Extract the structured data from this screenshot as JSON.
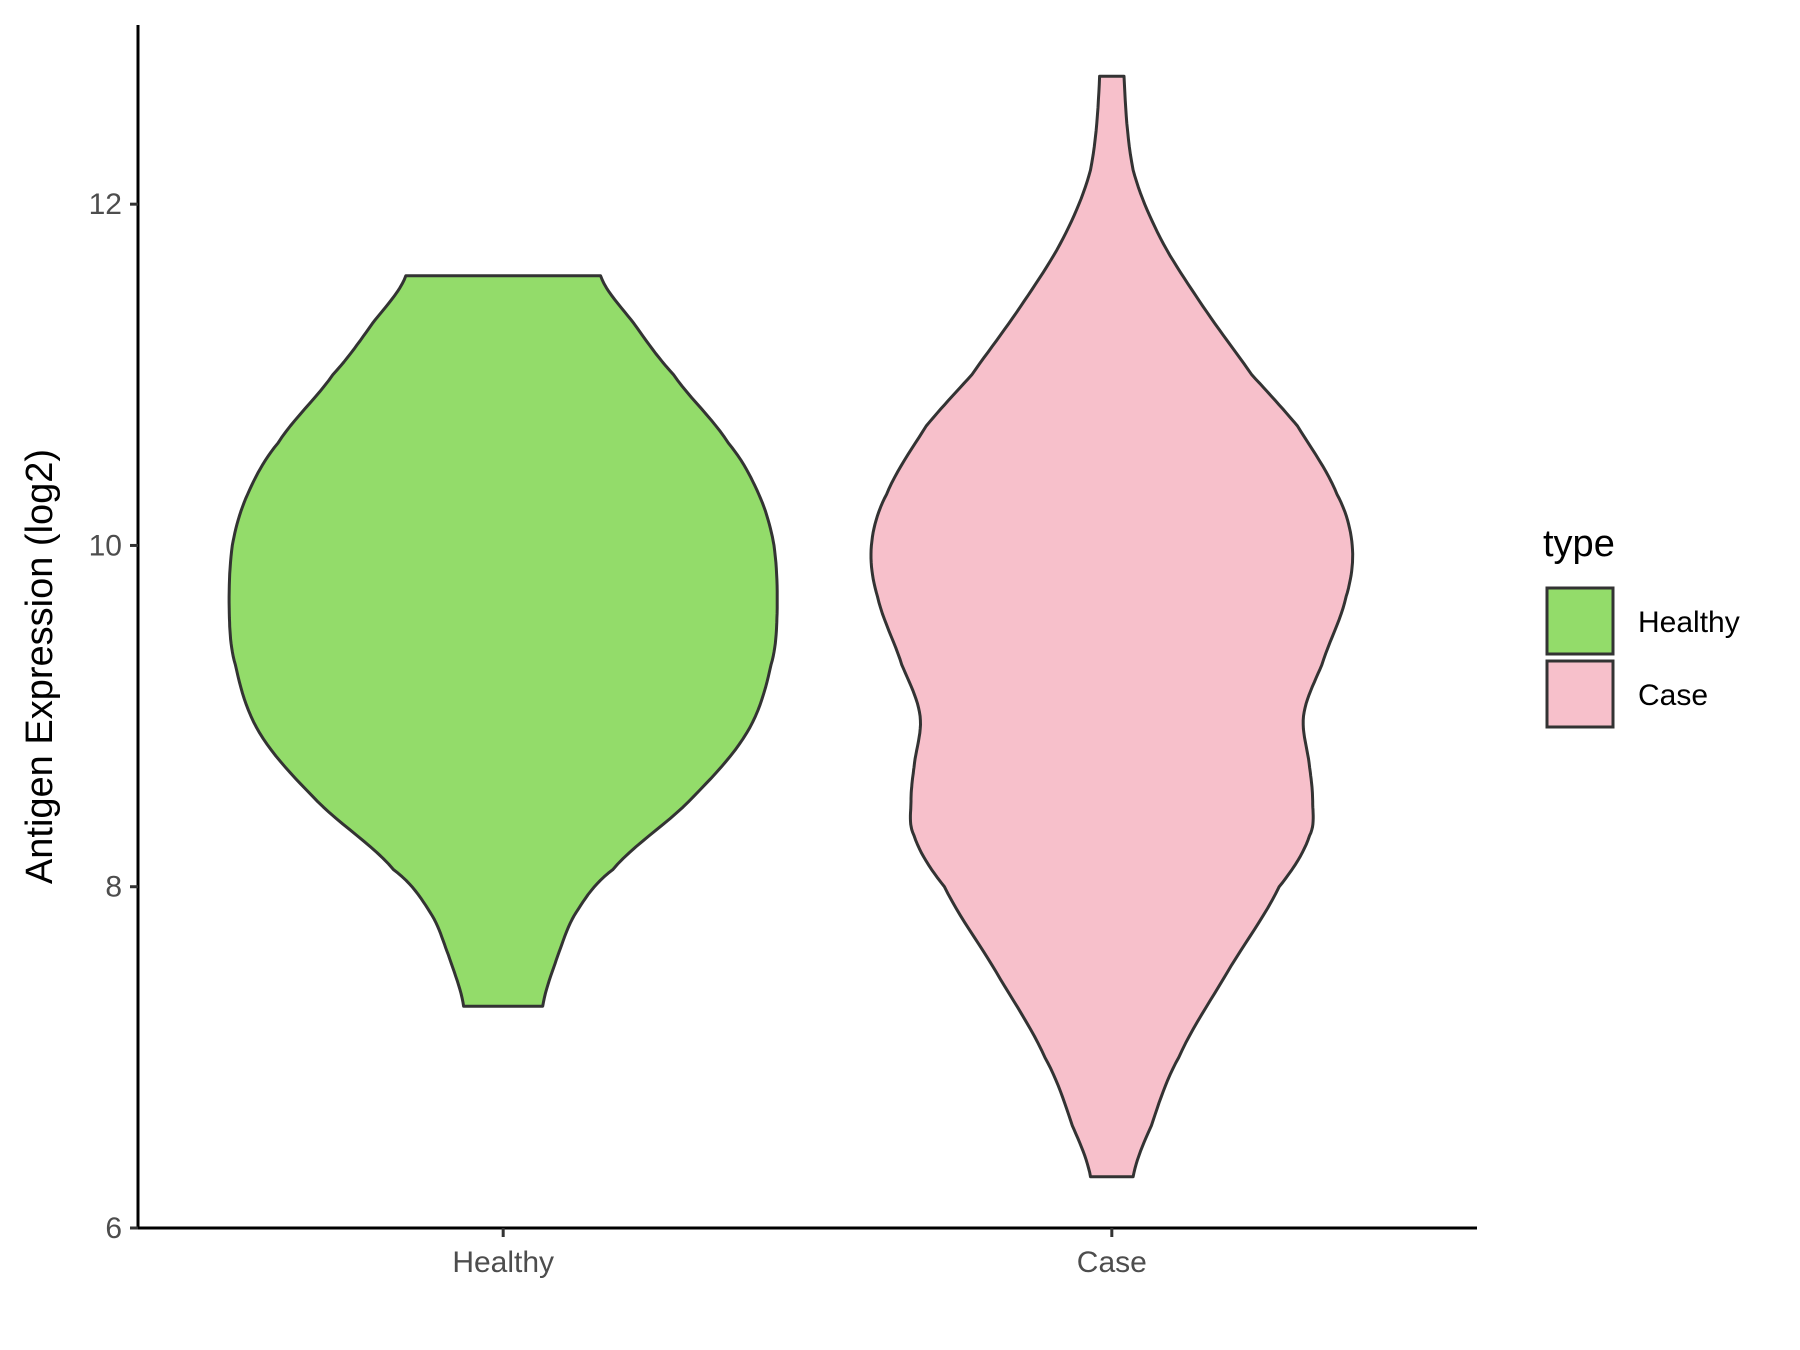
{
  "chart_data": {
    "type": "violin",
    "title": "",
    "xlabel": "",
    "ylabel": "Antigen Expression (log2)",
    "ylim": [
      6,
      13.05
    ],
    "yticks": [
      6,
      8,
      10,
      12
    ],
    "ytick_labels": [
      "6",
      "8",
      "10",
      "12"
    ],
    "categories": [
      "Healthy",
      "Case"
    ],
    "grid": false,
    "legend": {
      "title": "type",
      "position": "right",
      "entries": [
        "Healthy",
        "Case"
      ]
    },
    "series": [
      {
        "name": "Healthy",
        "color": "#93DC6A",
        "min": 7.3,
        "max": 11.58,
        "max_half_width": 0.9,
        "profile": [
          [
            7.3,
            0.13
          ],
          [
            7.6,
            0.18
          ],
          [
            7.85,
            0.24
          ],
          [
            8.1,
            0.36
          ],
          [
            8.5,
            0.61
          ],
          [
            8.9,
            0.8
          ],
          [
            9.3,
            0.88
          ],
          [
            9.6,
            0.9
          ],
          [
            10.0,
            0.89
          ],
          [
            10.3,
            0.84
          ],
          [
            10.6,
            0.74
          ],
          [
            11.0,
            0.56
          ],
          [
            11.3,
            0.43
          ],
          [
            11.58,
            0.32
          ]
        ]
      },
      {
        "name": "Case",
        "color": "#F7C0CB",
        "min": 6.3,
        "max": 12.75,
        "max_half_width": 0.9,
        "profile": [
          [
            6.3,
            0.07
          ],
          [
            6.6,
            0.13
          ],
          [
            7.0,
            0.22
          ],
          [
            7.5,
            0.38
          ],
          [
            8.0,
            0.55
          ],
          [
            8.3,
            0.65
          ],
          [
            8.5,
            0.66
          ],
          [
            8.7,
            0.65
          ],
          [
            9.0,
            0.63
          ],
          [
            9.3,
            0.69
          ],
          [
            9.7,
            0.77
          ],
          [
            10.0,
            0.79
          ],
          [
            10.3,
            0.74
          ],
          [
            10.7,
            0.61
          ],
          [
            11.0,
            0.46
          ],
          [
            11.4,
            0.3
          ],
          [
            11.8,
            0.16
          ],
          [
            12.2,
            0.07
          ],
          [
            12.75,
            0.04
          ]
        ]
      }
    ]
  }
}
